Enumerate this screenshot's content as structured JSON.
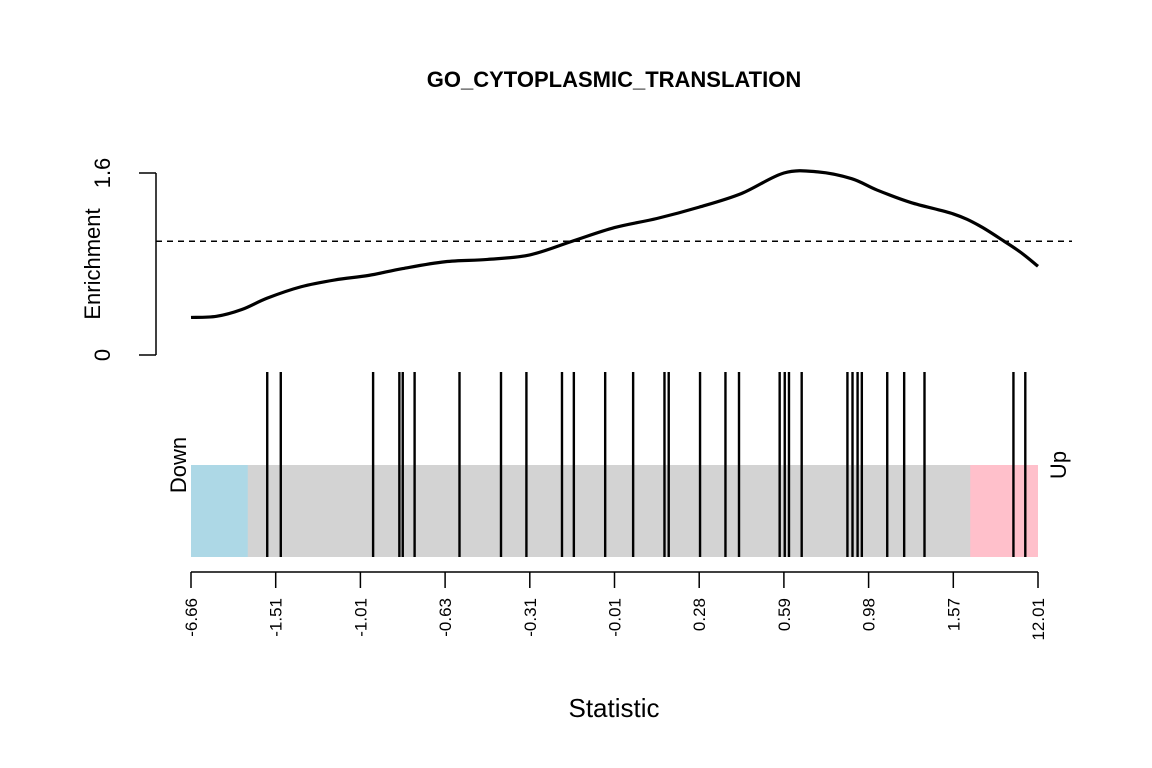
{
  "chart_data": {
    "type": "barcode",
    "title": "GO_CYTOPLASMIC_TRANSLATION",
    "xlabel": "Statistic",
    "enrichment": {
      "ylabel": "Enrichment",
      "ylim": [
        0,
        1.6
      ],
      "yticks": [
        "0",
        "1.6"
      ],
      "reference_level": 1.0,
      "x_rank": [
        0,
        0.03,
        0.06,
        0.09,
        0.13,
        0.17,
        0.21,
        0.25,
        0.3,
        0.35,
        0.4,
        0.45,
        0.5,
        0.55,
        0.6,
        0.65,
        0.7,
        0.74,
        0.78,
        0.81,
        0.85,
        0.9,
        0.93,
        0.96,
        0.98,
        1.0
      ],
      "values": [
        0.33,
        0.34,
        0.4,
        0.5,
        0.6,
        0.66,
        0.7,
        0.76,
        0.82,
        0.84,
        0.88,
        1.0,
        1.12,
        1.2,
        1.3,
        1.42,
        1.6,
        1.61,
        1.55,
        1.45,
        1.34,
        1.24,
        1.14,
        1.0,
        0.9,
        0.78
      ]
    },
    "regions": {
      "down_label": "Down",
      "up_label": "Up",
      "down_end_rank": 0.067,
      "up_start_rank": 0.92,
      "colors": {
        "down": "#add8e6",
        "middle": "#d3d3d3",
        "up": "#ffc0cb"
      }
    },
    "barcode_ranks": [
      0.09,
      0.106,
      0.215,
      0.246,
      0.25,
      0.264,
      0.317,
      0.366,
      0.396,
      0.438,
      0.452,
      0.489,
      0.522,
      0.559,
      0.564,
      0.601,
      0.631,
      0.647,
      0.695,
      0.701,
      0.706,
      0.721,
      0.775,
      0.781,
      0.787,
      0.792,
      0.822,
      0.842,
      0.866,
      0.971,
      0.985
    ],
    "x_ticks": [
      "-6.66",
      "-1.51",
      "-1.01",
      "-0.63",
      "-0.31",
      "-0.01",
      "0.28",
      "0.59",
      "0.98",
      "1.57",
      "12.01"
    ]
  }
}
